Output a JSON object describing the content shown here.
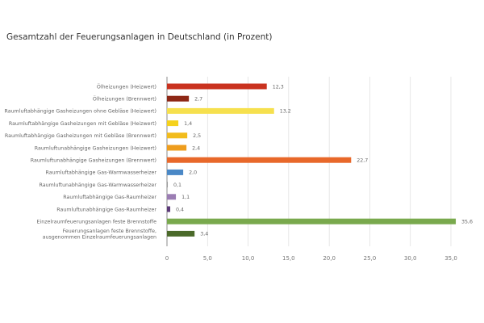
{
  "chart_data": {
    "type": "bar",
    "orientation": "horizontal",
    "title": "Gesamtzahl der Feuerungsanlagen in Deutschland (in Prozent)",
    "xlim": [
      0,
      35
    ],
    "xticks": [
      "0",
      "5,0",
      "10,0",
      "15,0",
      "20,0",
      "25,0",
      "30,0",
      "35,0"
    ],
    "grid": true,
    "categories": [
      [
        "Ölheizungen (Heizwert)"
      ],
      [
        "Ölheizungen (Brennwert)"
      ],
      [
        "Raumluftabhängige Gasheizungen ohne Gebläse (Heizwert)"
      ],
      [
        "Raumluftabhängige Gasheizungen mit Gebläse (Heizwert)"
      ],
      [
        "Raumluftabhängige Gasheizungen mit Gebläse (Brennwert)"
      ],
      [
        "Raumluftunabhängige Gasheizungen  (Heizwert)"
      ],
      [
        "Raumluftunabhängige Gasheizungen  (Brennwert)"
      ],
      [
        "Raumluftabhängige Gas-Warmwasserheizer"
      ],
      [
        "Raumluftunabhängige Gas-Warmwasserheizer"
      ],
      [
        "Raumluftabhängige Gas-Raumheizer"
      ],
      [
        "Raumluftunabhängige Gas-Raumheizer"
      ],
      [
        "Einzelraumfeuerungsanlagen feste Brennstoffe"
      ],
      [
        "Feuerungsanlagen feste Brennstoffe,",
        "ausgenommen Einzelraumfeuerungsanlagen"
      ]
    ],
    "values": [
      12.3,
      2.7,
      13.2,
      1.4,
      2.5,
      2.4,
      22.7,
      2.0,
      0.1,
      1.1,
      0.4,
      35.6,
      3.4
    ],
    "value_labels": [
      "12,3",
      "2,7",
      "13,2",
      "1,4",
      "2,5",
      "2,4",
      "22,7",
      "2,0",
      "0,1",
      "1,1",
      "0,4",
      "35,6",
      "3,4"
    ],
    "colors": [
      "#c9321f",
      "#8e2816",
      "#f6e04e",
      "#f5d21c",
      "#f2bc1c",
      "#ee9d1d",
      "#e8682a",
      "#4a88c6",
      "#9a9a9a",
      "#9b7db3",
      "#5c3a78",
      "#79a94d",
      "#4b6a2a"
    ]
  }
}
